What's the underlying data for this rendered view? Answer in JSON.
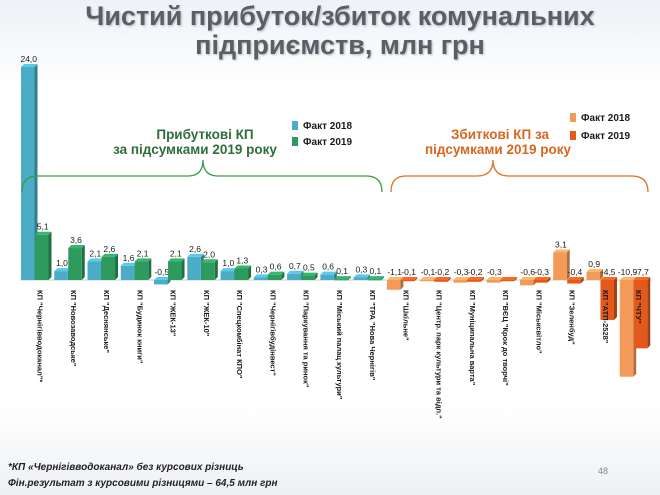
{
  "title": "Чистий прибуток/збиток комунальних підприємств, млн грн",
  "footnote1": "*КП «Чернігівводоканал»  без курсових різниць",
  "footnote2": "Фін.результат  з курсовими різницями  – 64,5  млн грн",
  "page_number": "48",
  "colors": {
    "profit_2018": "#4bacc6",
    "profit_2019": "#2e9b5e",
    "loss_2018": "#f39a58",
    "loss_2019": "#e3581b",
    "profit_brace": "#3d9a4a",
    "loss_brace": "#e0701f",
    "profit_title": "#2f6e3b",
    "loss_title": "#d9661f"
  },
  "groups": {
    "profit": {
      "title_line1": "Прибуткові  КП",
      "title_line2": "за підсумками 2019 року",
      "legend_2018": "Факт 2018",
      "legend_2019": "Факт 2019"
    },
    "loss": {
      "title_line1": "Збиткові  КП за",
      "title_line2": "підсумками 2019 року",
      "legend_2018": "Факт 2018",
      "legend_2019": "Факт 2019"
    }
  },
  "chart_data": {
    "type": "bar",
    "title": "Чистий прибуток/збиток комунальних підприємств, млн грн",
    "xlabel": "",
    "ylabel": "",
    "grid": false,
    "ylim": [
      -11,
      24
    ],
    "series_names": [
      "Факт 2018",
      "Факт 2019"
    ],
    "categories": [
      "КП \"Чернігівводоканал\"*",
      "КП \"Новозаводське\"",
      "КП \"Деснянське\"",
      "КП \"Будинок книги\"",
      "КП \"ЖЕК-13\"",
      "КП \"ЖЕК-10\"",
      "КП \"Спецкомбінат КПО\"",
      "КП \"Чернігівбудінвест\"",
      "КП \"Паркування та ринок\"",
      "КП \"Міський палац культури\"",
      "КП \"ТРА \"Нова Чернігів\"",
      "КП \"Шкільне\"",
      "КП \"Центр. парк культури та відп.\"",
      "КП \"Муніципальна варта\"",
      "КП \"ВЄЦ \"Крок до творчі\"",
      "КП \"Міськсвітло\"",
      "КП \"Зеленбуд\"",
      "КП \"АТП-2528\"",
      "КП \"ЧТУ\""
    ],
    "values_2018": [
      24.0,
      1.0,
      2.1,
      1.6,
      -0.5,
      2.6,
      1.0,
      0.3,
      0.7,
      0.6,
      0.3,
      -1.1,
      -0.1,
      -0.3,
      -0.3,
      -0.6,
      3.1,
      0.9,
      -10.9
    ],
    "values_2019": [
      5.1,
      3.6,
      2.6,
      2.1,
      2.1,
      2.0,
      1.3,
      0.6,
      0.5,
      0.1,
      0.1,
      -0.1,
      -0.2,
      -0.2,
      -0.1,
      -0.3,
      -0.4,
      -4.5,
      -7.7
    ],
    "labels_2018": [
      "24,0",
      "1,0",
      "2,1",
      "1,6",
      "-0,5",
      "2,6",
      "1,0",
      "0,3",
      "0,7",
      "0,6",
      "0,3",
      "-1,1",
      "-0,1",
      "-0,3",
      "-0,3",
      "-0,6",
      "3,1",
      "0,9",
      "-10,9"
    ],
    "labels_2019": [
      "5,1",
      "3,6",
      "2,6",
      "2,1",
      "2,1",
      "2,0",
      "1,3",
      "0,6",
      "0,5",
      "0,1",
      "0,1",
      "-0,1",
      "-0,2",
      "-0,2",
      "",
      "-0,3",
      "-0,4",
      "-4,5",
      "-7,7"
    ],
    "profit_count": 11
  }
}
